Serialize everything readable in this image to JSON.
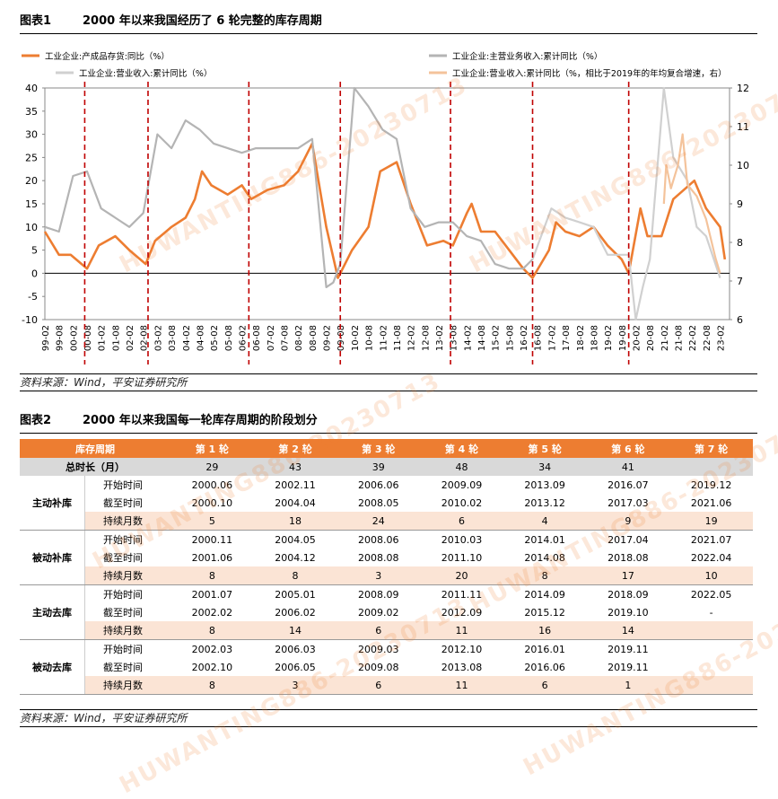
{
  "figure1": {
    "label": "图表1",
    "title": "2000 年以来我国经历了 6 轮完整的库存周期",
    "source": "资料来源：Wind，平安证券研究所"
  },
  "figure2": {
    "label": "图表2",
    "title": "2000 年以来我国每一轮库存周期的阶段划分",
    "source": "资料来源：Wind，平安证券研究所",
    "header": [
      "库存周期",
      "第 1 轮",
      "第 2 轮",
      "第 3 轮",
      "第 4 轮",
      "第 5 轮",
      "第 6 轮",
      "第 7 轮"
    ],
    "total_row": {
      "label": "总时长（月）",
      "values": [
        "29",
        "43",
        "39",
        "48",
        "34",
        "41",
        ""
      ]
    },
    "groups": [
      {
        "name": "主动补库",
        "rows": [
          {
            "label": "开始时间",
            "values": [
              "2000.06",
              "2002.11",
              "2006.06",
              "2009.09",
              "2013.09",
              "2016.07",
              "2019.12"
            ]
          },
          {
            "label": "截至时间",
            "values": [
              "2000.10",
              "2004.04",
              "2008.05",
              "2010.02",
              "2013.12",
              "2017.03",
              "2021.06"
            ]
          },
          {
            "label": "持续月数",
            "values": [
              "5",
              "18",
              "24",
              "6",
              "4",
              "9",
              "19"
            ]
          }
        ]
      },
      {
        "name": "被动补库",
        "rows": [
          {
            "label": "开始时间",
            "values": [
              "2000.11",
              "2004.05",
              "2008.06",
              "2010.03",
              "2014.01",
              "2017.04",
              "2021.07"
            ]
          },
          {
            "label": "截至时间",
            "values": [
              "2001.06",
              "2004.12",
              "2008.08",
              "2011.10",
              "2014.08",
              "2018.08",
              "2022.04"
            ]
          },
          {
            "label": "持续月数",
            "values": [
              "8",
              "8",
              "3",
              "20",
              "8",
              "17",
              "10"
            ]
          }
        ]
      },
      {
        "name": "主动去库",
        "rows": [
          {
            "label": "开始时间",
            "values": [
              "2001.07",
              "2005.01",
              "2008.09",
              "2011.11",
              "2014.09",
              "2018.09",
              "2022.05"
            ]
          },
          {
            "label": "截至时间",
            "values": [
              "2002.02",
              "2006.02",
              "2009.02",
              "2012.09",
              "2015.12",
              "2019.10",
              "-"
            ]
          },
          {
            "label": "持续月数",
            "values": [
              "8",
              "14",
              "6",
              "11",
              "16",
              "14",
              ""
            ]
          }
        ]
      },
      {
        "name": "被动去库",
        "rows": [
          {
            "label": "开始时间",
            "values": [
              "2002.03",
              "2006.03",
              "2009.03",
              "2012.10",
              "2016.01",
              "2019.11",
              ""
            ]
          },
          {
            "label": "截至时间",
            "values": [
              "2002.10",
              "2006.05",
              "2009.08",
              "2013.08",
              "2016.06",
              "2019.11",
              ""
            ]
          },
          {
            "label": "持续月数",
            "values": [
              "8",
              "3",
              "6",
              "11",
              "6",
              "1",
              ""
            ]
          }
        ]
      }
    ]
  },
  "watermark": "HUWANTING886-20230713",
  "chart_data": {
    "type": "line",
    "x_ticks": [
      "99-02",
      "99-08",
      "00-02",
      "00-08",
      "01-02",
      "01-08",
      "02-02",
      "02-08",
      "03-02",
      "03-08",
      "04-02",
      "04-08",
      "05-02",
      "05-08",
      "06-02",
      "06-08",
      "07-02",
      "07-08",
      "08-02",
      "08-08",
      "09-02",
      "09-08",
      "10-02",
      "10-08",
      "11-02",
      "11-08",
      "12-02",
      "12-08",
      "13-02",
      "13-08",
      "14-02",
      "14-08",
      "15-02",
      "15-08",
      "16-02",
      "16-08",
      "17-02",
      "17-08",
      "18-02",
      "18-08",
      "19-02",
      "19-08",
      "20-02",
      "20-08",
      "21-02",
      "21-08",
      "22-02",
      "22-08",
      "23-02"
    ],
    "left_ylim": [
      -10,
      40
    ],
    "left_yticks": [
      -10,
      -5,
      0,
      5,
      10,
      15,
      20,
      25,
      30,
      35,
      40
    ],
    "right_ylim": [
      6,
      12
    ],
    "right_yticks": [
      6,
      7,
      8,
      9,
      10,
      11,
      12
    ],
    "cycle_lines": [
      "00-07",
      "02-10",
      "06-05",
      "09-08",
      "13-07",
      "16-06",
      "19-11"
    ],
    "colors": {
      "inventory": "#ed7d31",
      "revenue_main": "#b4b4b4",
      "revenue": "#d0d0d0",
      "revenue_cagr": "#f4c39b",
      "cycle_line": "#c00000"
    },
    "series": [
      {
        "name": "工业企业:产成品存货:同比（%）",
        "axis": "left",
        "color": "#ed7d31",
        "points": [
          [
            "99-02",
            9
          ],
          [
            "99-08",
            4
          ],
          [
            "00-01",
            4
          ],
          [
            "00-08",
            1
          ],
          [
            "01-01",
            6
          ],
          [
            "01-08",
            8
          ],
          [
            "02-02",
            5
          ],
          [
            "02-09",
            2
          ],
          [
            "03-01",
            7
          ],
          [
            "03-08",
            10
          ],
          [
            "04-02",
            12
          ],
          [
            "04-06",
            16
          ],
          [
            "04-09",
            22
          ],
          [
            "05-01",
            19
          ],
          [
            "05-08",
            17
          ],
          [
            "06-02",
            19
          ],
          [
            "06-06",
            16
          ],
          [
            "07-01",
            18
          ],
          [
            "07-08",
            19
          ],
          [
            "08-02",
            22
          ],
          [
            "08-08",
            28
          ],
          [
            "09-02",
            10
          ],
          [
            "09-07",
            -1
          ],
          [
            "10-01",
            5
          ],
          [
            "10-08",
            10
          ],
          [
            "11-01",
            22
          ],
          [
            "11-08",
            24
          ],
          [
            "12-02",
            15
          ],
          [
            "12-09",
            6
          ],
          [
            "13-04",
            7
          ],
          [
            "13-08",
            6
          ],
          [
            "14-02",
            13
          ],
          [
            "14-04",
            15
          ],
          [
            "14-08",
            9
          ],
          [
            "15-02",
            9
          ],
          [
            "15-08",
            5
          ],
          [
            "16-02",
            1
          ],
          [
            "16-06",
            -1
          ],
          [
            "17-01",
            5
          ],
          [
            "17-04",
            11
          ],
          [
            "17-08",
            9
          ],
          [
            "18-02",
            8
          ],
          [
            "18-08",
            10
          ],
          [
            "19-02",
            6
          ],
          [
            "19-08",
            3
          ],
          [
            "19-11",
            0
          ],
          [
            "20-04",
            14
          ],
          [
            "20-07",
            8
          ],
          [
            "21-01",
            8
          ],
          [
            "21-06",
            16
          ],
          [
            "22-03",
            20
          ],
          [
            "22-08",
            14
          ],
          [
            "23-02",
            10
          ],
          [
            "23-04",
            3
          ]
        ]
      },
      {
        "name": "工业企业:主营业务收入:累计同比（%）",
        "axis": "left",
        "color": "#b4b4b4",
        "points": [
          [
            "99-02",
            10
          ],
          [
            "99-08",
            9
          ],
          [
            "00-02",
            21
          ],
          [
            "00-08",
            22
          ],
          [
            "01-02",
            14
          ],
          [
            "01-08",
            12
          ],
          [
            "02-02",
            10
          ],
          [
            "02-08",
            13
          ],
          [
            "03-02",
            30
          ],
          [
            "03-08",
            27
          ],
          [
            "04-02",
            33
          ],
          [
            "04-08",
            31
          ],
          [
            "05-02",
            28
          ],
          [
            "05-08",
            27
          ],
          [
            "06-02",
            26
          ],
          [
            "06-08",
            27
          ],
          [
            "07-02",
            27
          ],
          [
            "07-08",
            27
          ],
          [
            "08-02",
            27
          ],
          [
            "08-08",
            29
          ],
          [
            "09-02",
            -3
          ],
          [
            "09-05",
            -2
          ],
          [
            "09-08",
            2
          ],
          [
            "10-02",
            40
          ],
          [
            "10-08",
            36
          ],
          [
            "11-02",
            31
          ],
          [
            "11-08",
            29
          ],
          [
            "12-02",
            14
          ],
          [
            "12-08",
            10
          ],
          [
            "13-02",
            11
          ],
          [
            "13-08",
            11
          ],
          [
            "14-02",
            8
          ],
          [
            "14-08",
            7
          ],
          [
            "15-02",
            2
          ],
          [
            "15-08",
            1
          ],
          [
            "16-02",
            1
          ],
          [
            "16-06",
            3
          ]
        ]
      },
      {
        "name": "工业企业:营业收入:累计同比（%）",
        "axis": "left",
        "color": "#d0d0d0",
        "points": [
          [
            "16-06",
            3
          ],
          [
            "17-02",
            14
          ],
          [
            "17-08",
            12
          ],
          [
            "18-02",
            11
          ],
          [
            "18-08",
            10
          ],
          [
            "19-02",
            4
          ],
          [
            "19-08",
            4
          ],
          [
            "19-11",
            4
          ],
          [
            "20-02",
            -10
          ],
          [
            "20-05",
            -3
          ],
          [
            "20-08",
            3
          ],
          [
            "21-02",
            40
          ],
          [
            "21-06",
            25
          ],
          [
            "21-12",
            20
          ],
          [
            "22-04",
            10
          ],
          [
            "22-08",
            8
          ],
          [
            "23-02",
            -1
          ]
        ]
      },
      {
        "name": "工业企业:营业收入:累计同比（%，相比于2019年的年均复合增速，右）",
        "axis": "right",
        "color": "#f4c39b",
        "points": [
          [
            "21-02",
            9.0
          ],
          [
            "21-03",
            10.0
          ],
          [
            "21-05",
            9.4
          ],
          [
            "21-08",
            10.0
          ],
          [
            "21-10",
            10.8
          ],
          [
            "21-12",
            9.5
          ],
          [
            "22-04",
            9.2
          ],
          [
            "22-08",
            8.6
          ],
          [
            "22-12",
            7.6
          ],
          [
            "23-02",
            7.2
          ]
        ]
      }
    ]
  }
}
